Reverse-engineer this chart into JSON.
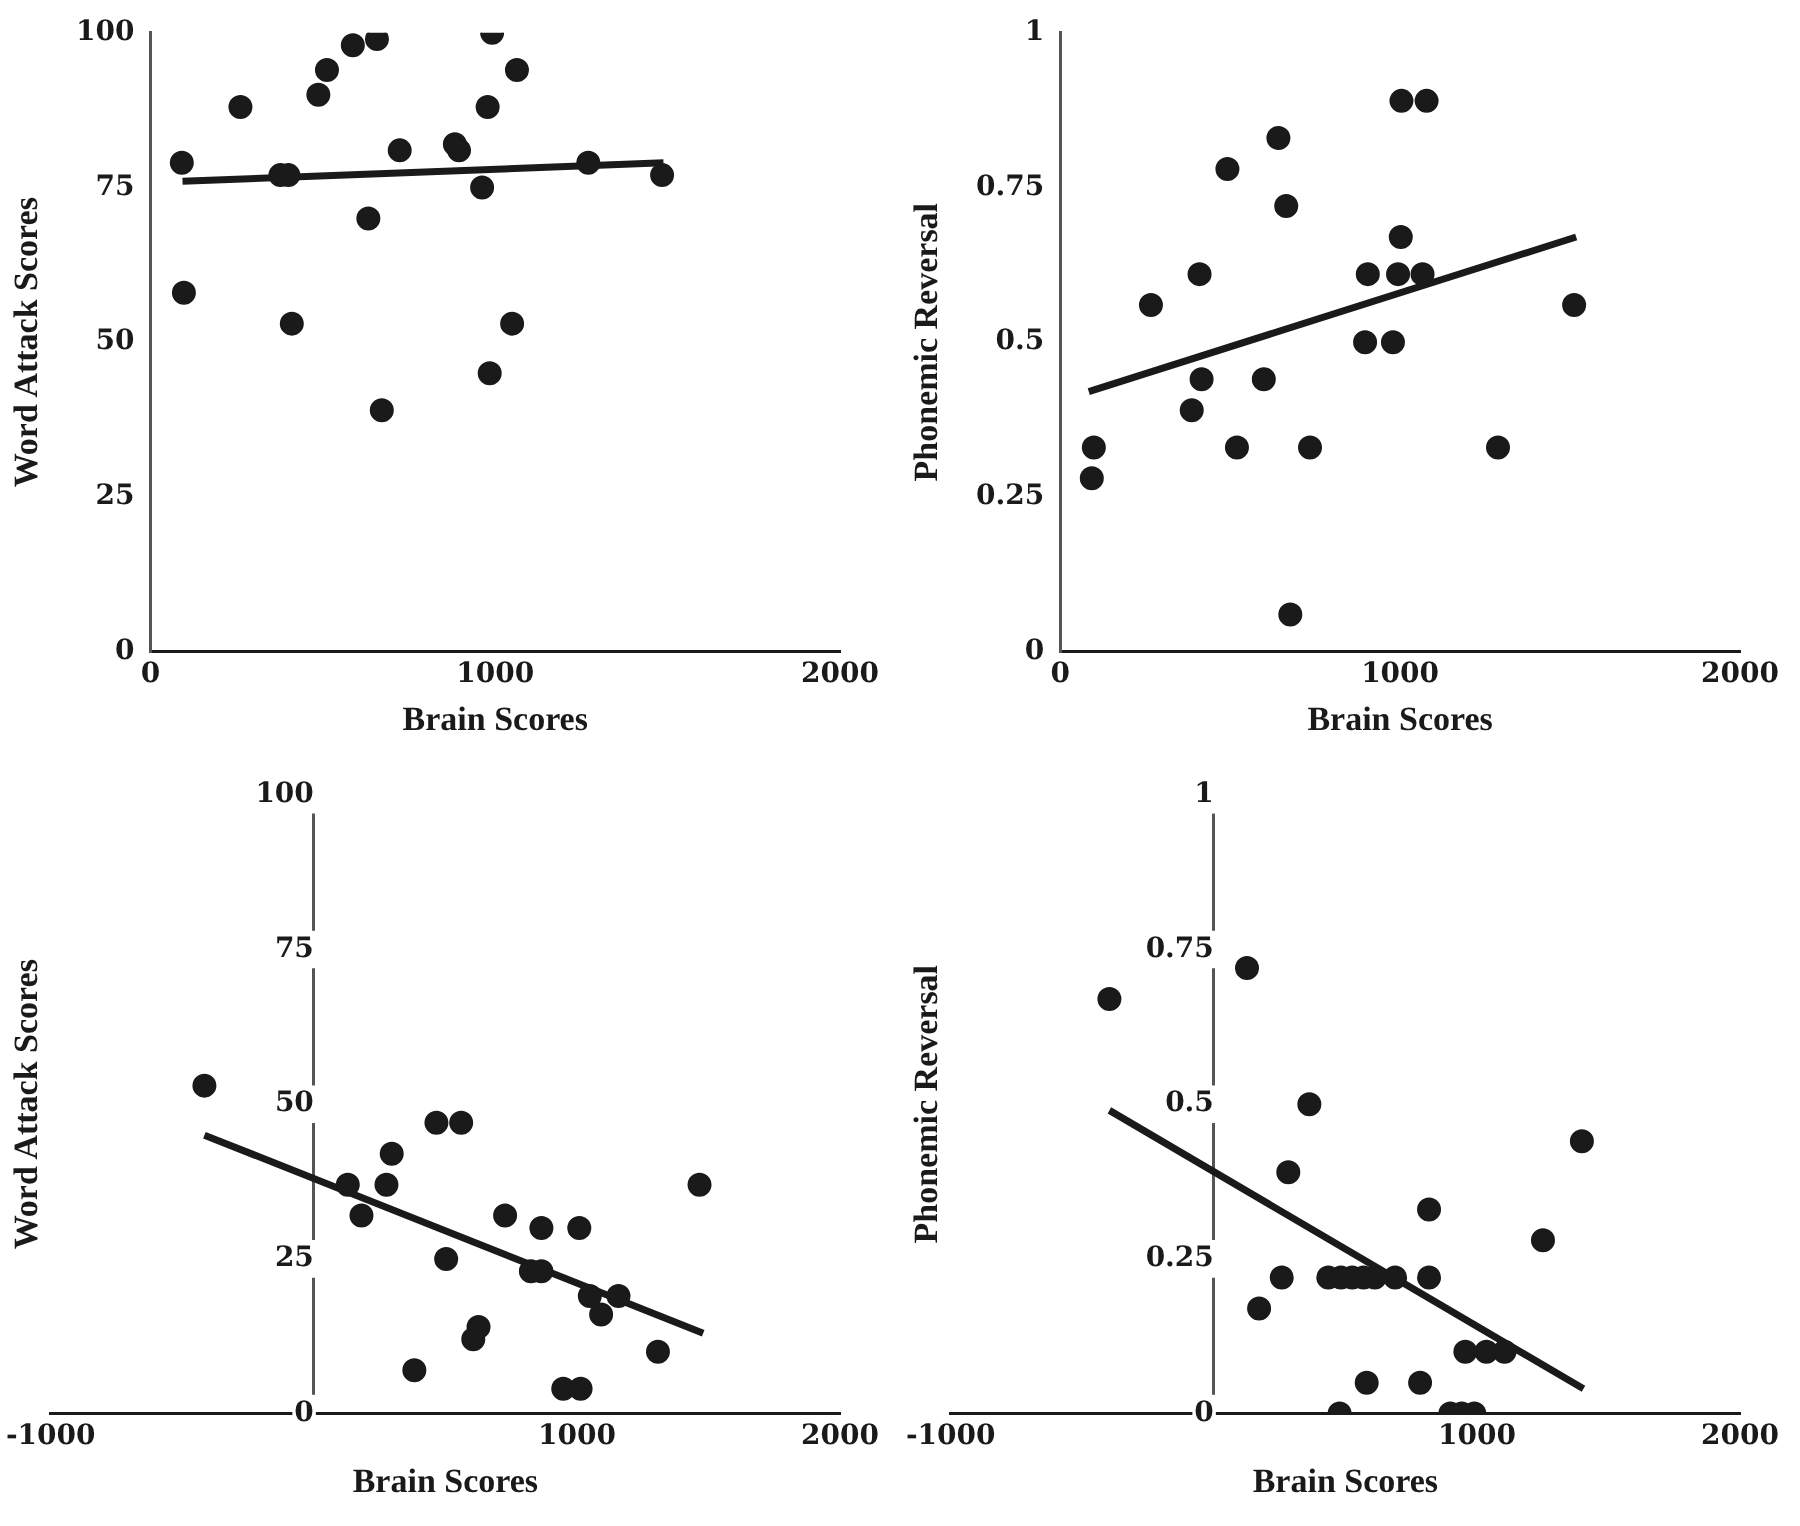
{
  "chart_data": [
    {
      "type": "scatter",
      "xlabel": "Brain Scores",
      "ylabel": "Word Attack Scores",
      "xlim": [
        0,
        2000
      ],
      "xticks": [
        0,
        1000,
        2000
      ],
      "ylim": [
        0,
        100
      ],
      "yticks": [
        0,
        25,
        50,
        75,
        100
      ],
      "series": [
        {
          "type": "scatter",
          "marker": "circle",
          "color": "#1a1a1a",
          "x": [
            91,
            261,
            487,
            512,
            587,
            657,
            991,
            1063,
            978,
            723,
            883,
            895,
            1270,
            1484,
            377,
            400,
            962,
            632,
            97,
            410,
            1049,
            984,
            671
          ],
          "values": [
            79,
            88,
            90,
            94,
            98,
            99,
            100,
            94,
            88,
            81,
            82,
            81,
            79,
            77,
            77,
            77,
            75,
            70,
            58,
            53,
            53,
            45,
            39
          ]
        },
        {
          "type": "line",
          "color": "#1a1a1a",
          "x": [
            93,
            1488
          ],
          "values": [
            76,
            79
          ]
        }
      ]
    },
    {
      "type": "scatter",
      "xlabel": "Brain Scores",
      "ylabel": "Phonemic Reversal",
      "xlim": [
        0,
        2000
      ],
      "xticks": [
        0,
        1000,
        2000
      ],
      "ylim": [
        0,
        1
      ],
      "yticks": [
        0,
        0.25,
        0.5,
        0.75,
        1
      ],
      "series": [
        {
          "type": "scatter",
          "marker": "circle",
          "color": "#1a1a1a",
          "x": [
            99,
            93,
            267,
            410,
            416,
            387,
            492,
            520,
            599,
            642,
            665,
            735,
            677,
            905,
            897,
            979,
            994,
            1002,
            1004,
            1078,
            1066,
            1288,
            1512
          ],
          "values": [
            0.33,
            0.28,
            0.56,
            0.61,
            0.44,
            0.39,
            0.78,
            0.33,
            0.44,
            0.83,
            0.72,
            0.33,
            0.06,
            0.61,
            0.5,
            0.5,
            0.61,
            0.67,
            0.89,
            0.89,
            0.61,
            0.33,
            0.56
          ]
        },
        {
          "type": "line",
          "color": "#1a1a1a",
          "x": [
            84,
            1518
          ],
          "values": [
            0.42,
            0.67
          ]
        }
      ]
    },
    {
      "type": "scatter",
      "xlabel": "Brain Scores",
      "ylabel": "Word Attack Scores",
      "xlim": [
        -1000,
        2000
      ],
      "xticks": [
        -1000,
        1000,
        2000
      ],
      "ylim": [
        0,
        100
      ],
      "yticks": [
        0,
        25,
        50,
        75,
        100
      ],
      "series": [
        {
          "type": "scatter",
          "marker": "circle",
          "color": "#1a1a1a",
          "x": [
            -416,
            129,
            181,
            276,
            296,
            382,
            466,
            560,
            503,
            606,
            626,
            727,
            825,
            865,
            865,
            948,
            1014,
            1009,
            1049,
            1092,
            1158,
            1308,
            1466
          ],
          "values": [
            53,
            37,
            32,
            37,
            42,
            7,
            47,
            47,
            25,
            12,
            14,
            32,
            23,
            23,
            30,
            4,
            4,
            30,
            19,
            16,
            19,
            10,
            37
          ]
        },
        {
          "type": "line",
          "color": "#1a1a1a",
          "x": [
            -416,
            1480
          ],
          "values": [
            45,
            13
          ]
        }
      ]
    },
    {
      "type": "scatter",
      "xlabel": "Brain Scores",
      "ylabel": "Phonemic Reversal",
      "xlim": [
        -1000,
        2000
      ],
      "xticks": [
        -1000,
        1000,
        2000
      ],
      "ylim": [
        0,
        1
      ],
      "yticks": [
        0,
        0.25,
        0.5,
        0.75,
        1
      ],
      "series": [
        {
          "type": "scatter",
          "marker": "circle",
          "color": "#1a1a1a",
          "x": [
            -397,
            126,
            172,
            258,
            283,
            363,
            478,
            435,
            483,
            526,
            569,
            612,
            689,
            581,
            784,
            818,
            818,
            899,
            942,
            990,
            956,
            1036,
            1105,
            1251,
            1399
          ],
          "values": [
            0.67,
            0.72,
            0.17,
            0.22,
            0.39,
            0.5,
            0,
            0.22,
            0.22,
            0.22,
            0.22,
            0.22,
            0.22,
            0.05,
            0.05,
            0.33,
            0.22,
            0,
            0,
            0,
            0.1,
            0.1,
            0.1,
            0.28,
            0.44
          ]
        },
        {
          "type": "line",
          "color": "#1a1a1a",
          "x": [
            -397,
            1405
          ],
          "values": [
            0.49,
            0.04
          ]
        }
      ]
    }
  ]
}
